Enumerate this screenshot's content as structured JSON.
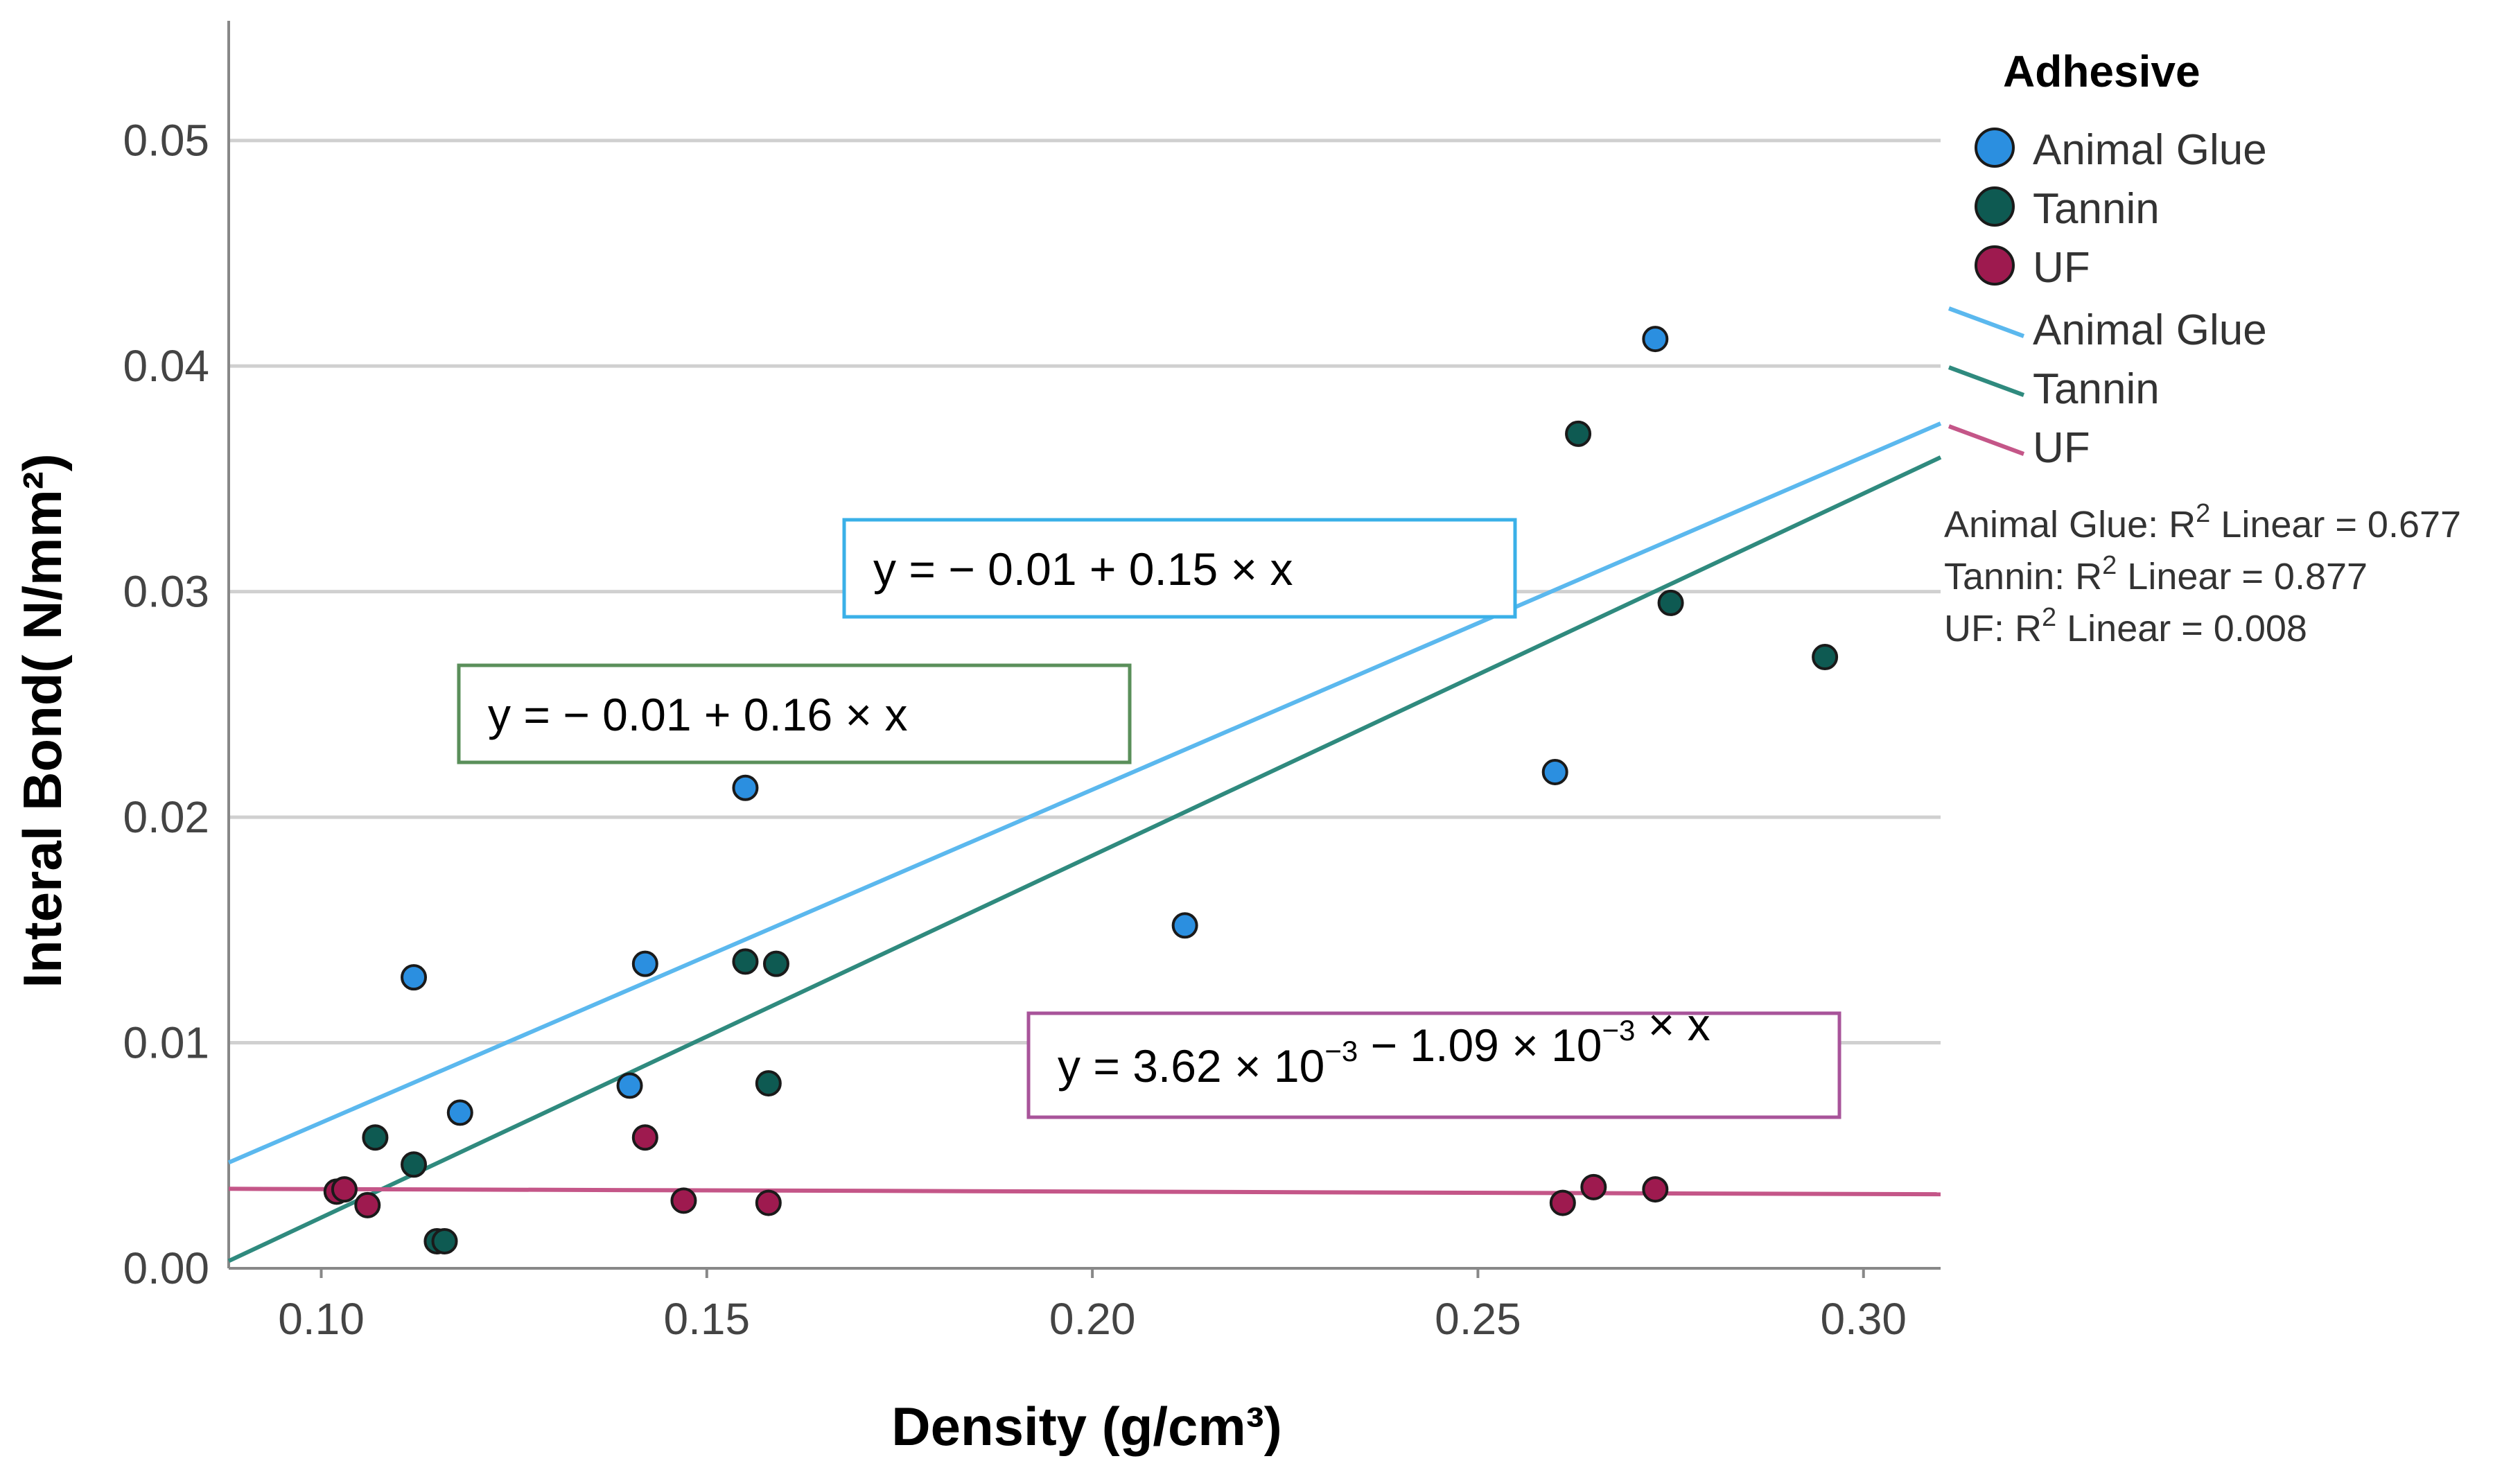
{
  "chart_data": {
    "type": "scatter",
    "xlabel": "Density (g/cm³)",
    "ylabel": "Interal Bond( N/mm²)",
    "xlim": [
      0.088,
      0.31
    ],
    "ylim": [
      0.0,
      0.055
    ],
    "x_ticks": [
      "0.10",
      "0.15",
      "0.20",
      "0.25",
      "0.30"
    ],
    "x_tick_values": [
      0.1,
      0.15,
      0.2,
      0.25,
      0.3
    ],
    "y_ticks": [
      "0.00",
      "0.01",
      "0.02",
      "0.03",
      "0.04",
      "0.05"
    ],
    "y_tick_values": [
      0.0,
      0.01,
      0.02,
      0.03,
      0.04,
      0.05
    ],
    "grid": "horizontal",
    "legend": {
      "title": "Adhesive",
      "placement": "right",
      "markers": [
        "Animal Glue",
        "Tannin",
        "UF"
      ],
      "lines": [
        "Animal Glue",
        "Tannin",
        "UF"
      ],
      "r2": [
        {
          "series": "Animal Glue",
          "prefix": "Animal Glue: R",
          "sup": "2",
          "suffix": " Linear = 0.677"
        },
        {
          "series": "Tannin",
          "prefix": "Tannin: R",
          "sup": "2",
          "suffix": " Linear = 0.877"
        },
        {
          "series": "UF",
          "prefix": "UF: R",
          "sup": "2",
          "suffix": " Linear = 0.008"
        }
      ]
    },
    "series": [
      {
        "name": "Animal Glue",
        "marker_color": "#2b8fe0",
        "line_color": "#5bb8ee",
        "points": [
          [
            0.112,
            0.0129
          ],
          [
            0.118,
            0.0069
          ],
          [
            0.14,
            0.0081
          ],
          [
            0.142,
            0.0135
          ],
          [
            0.155,
            0.0213
          ],
          [
            0.212,
            0.0152
          ],
          [
            0.26,
            0.022
          ],
          [
            0.273,
            0.0412
          ]
        ],
        "fit": {
          "intercept": -0.0083,
          "slope": 0.1476
        }
      },
      {
        "name": "Tannin",
        "marker_color": "#0e5a52",
        "line_color": "#2f8a7e",
        "points": [
          [
            0.107,
            0.0058
          ],
          [
            0.112,
            0.0046
          ],
          [
            0.115,
            0.0012
          ],
          [
            0.116,
            0.0012
          ],
          [
            0.155,
            0.0136
          ],
          [
            0.158,
            0.0082
          ],
          [
            0.159,
            0.0135
          ],
          [
            0.263,
            0.037
          ],
          [
            0.275,
            0.0295
          ],
          [
            0.295,
            0.0271
          ]
        ],
        "fit": {
          "intercept": -0.0138,
          "slope": 0.1605
        }
      },
      {
        "name": "UF",
        "marker_color": "#9e1a4f",
        "line_color": "#c45688",
        "points": [
          [
            0.102,
            0.0034
          ],
          [
            0.103,
            0.0035
          ],
          [
            0.106,
            0.0028
          ],
          [
            0.142,
            0.0058
          ],
          [
            0.147,
            0.003
          ],
          [
            0.158,
            0.0029
          ],
          [
            0.261,
            0.0029
          ],
          [
            0.265,
            0.0036
          ],
          [
            0.273,
            0.0035
          ]
        ],
        "fit": {
          "intercept": 0.00362,
          "slope": -0.00109
        }
      }
    ],
    "annotations": [
      {
        "series": "Animal Glue",
        "box_color": "#3ab0e8",
        "parts": [
          {
            "t": "y = − 0.01 + 0.15 × x"
          }
        ]
      },
      {
        "series": "Tannin",
        "box_color": "#5a8f5a",
        "parts": [
          {
            "t": "y = − 0.01 + 0.16 × x"
          }
        ]
      },
      {
        "series": "UF",
        "box_color": "#a8549a",
        "parts": [
          {
            "t": "y = 3.62 × 10"
          },
          {
            "t": "−3",
            "sup": true
          },
          {
            "t": " − 1.09 × 10"
          },
          {
            "t": "−3",
            "sup": true
          },
          {
            "t": " × x"
          }
        ]
      }
    ]
  }
}
